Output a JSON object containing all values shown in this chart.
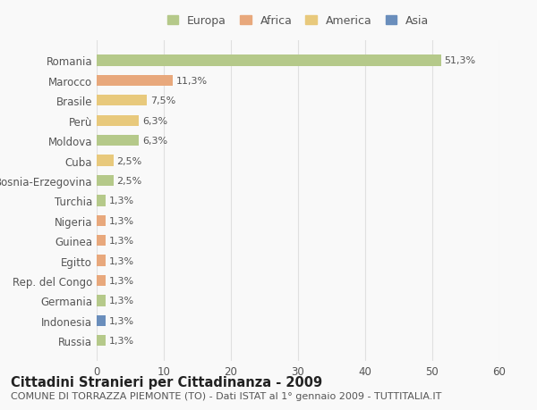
{
  "categories": [
    "Romania",
    "Marocco",
    "Brasile",
    "Perù",
    "Moldova",
    "Cuba",
    "Bosnia-Erzegovina",
    "Turchia",
    "Nigeria",
    "Guinea",
    "Egitto",
    "Rep. del Congo",
    "Germania",
    "Indonesia",
    "Russia"
  ],
  "values": [
    51.3,
    11.3,
    7.5,
    6.3,
    6.3,
    2.5,
    2.5,
    1.3,
    1.3,
    1.3,
    1.3,
    1.3,
    1.3,
    1.3,
    1.3
  ],
  "labels": [
    "51,3%",
    "11,3%",
    "7,5%",
    "6,3%",
    "6,3%",
    "2,5%",
    "2,5%",
    "1,3%",
    "1,3%",
    "1,3%",
    "1,3%",
    "1,3%",
    "1,3%",
    "1,3%",
    "1,3%"
  ],
  "colors": [
    "#b5c98a",
    "#e8a87c",
    "#e8c97c",
    "#e8c97c",
    "#b5c98a",
    "#e8c97c",
    "#b5c98a",
    "#b5c98a",
    "#e8a87c",
    "#e8a87c",
    "#e8a87c",
    "#e8a87c",
    "#b5c98a",
    "#6a8ebc",
    "#b5c98a"
  ],
  "continent": [
    "Europa",
    "Africa",
    "America",
    "America",
    "Europa",
    "America",
    "Europa",
    "Europa",
    "Africa",
    "Africa",
    "Africa",
    "Africa",
    "Europa",
    "Asia",
    "Europa"
  ],
  "legend_labels": [
    "Europa",
    "Africa",
    "America",
    "Asia"
  ],
  "legend_colors": [
    "#b5c98a",
    "#e8a87c",
    "#e8c97c",
    "#6a8ebc"
  ],
  "title": "Cittadini Stranieri per Cittadinanza - 2009",
  "subtitle": "COMUNE DI TORRAZZA PIEMONTE (TO) - Dati ISTAT al 1° gennaio 2009 - TUTTITALIA.IT",
  "xlim": [
    0,
    60
  ],
  "xticks": [
    0,
    10,
    20,
    30,
    40,
    50,
    60
  ],
  "background_color": "#f9f9f9",
  "grid_color": "#e0e0e0",
  "bar_height": 0.55,
  "title_fontsize": 10.5,
  "subtitle_fontsize": 8,
  "tick_fontsize": 8.5,
  "label_fontsize": 8
}
